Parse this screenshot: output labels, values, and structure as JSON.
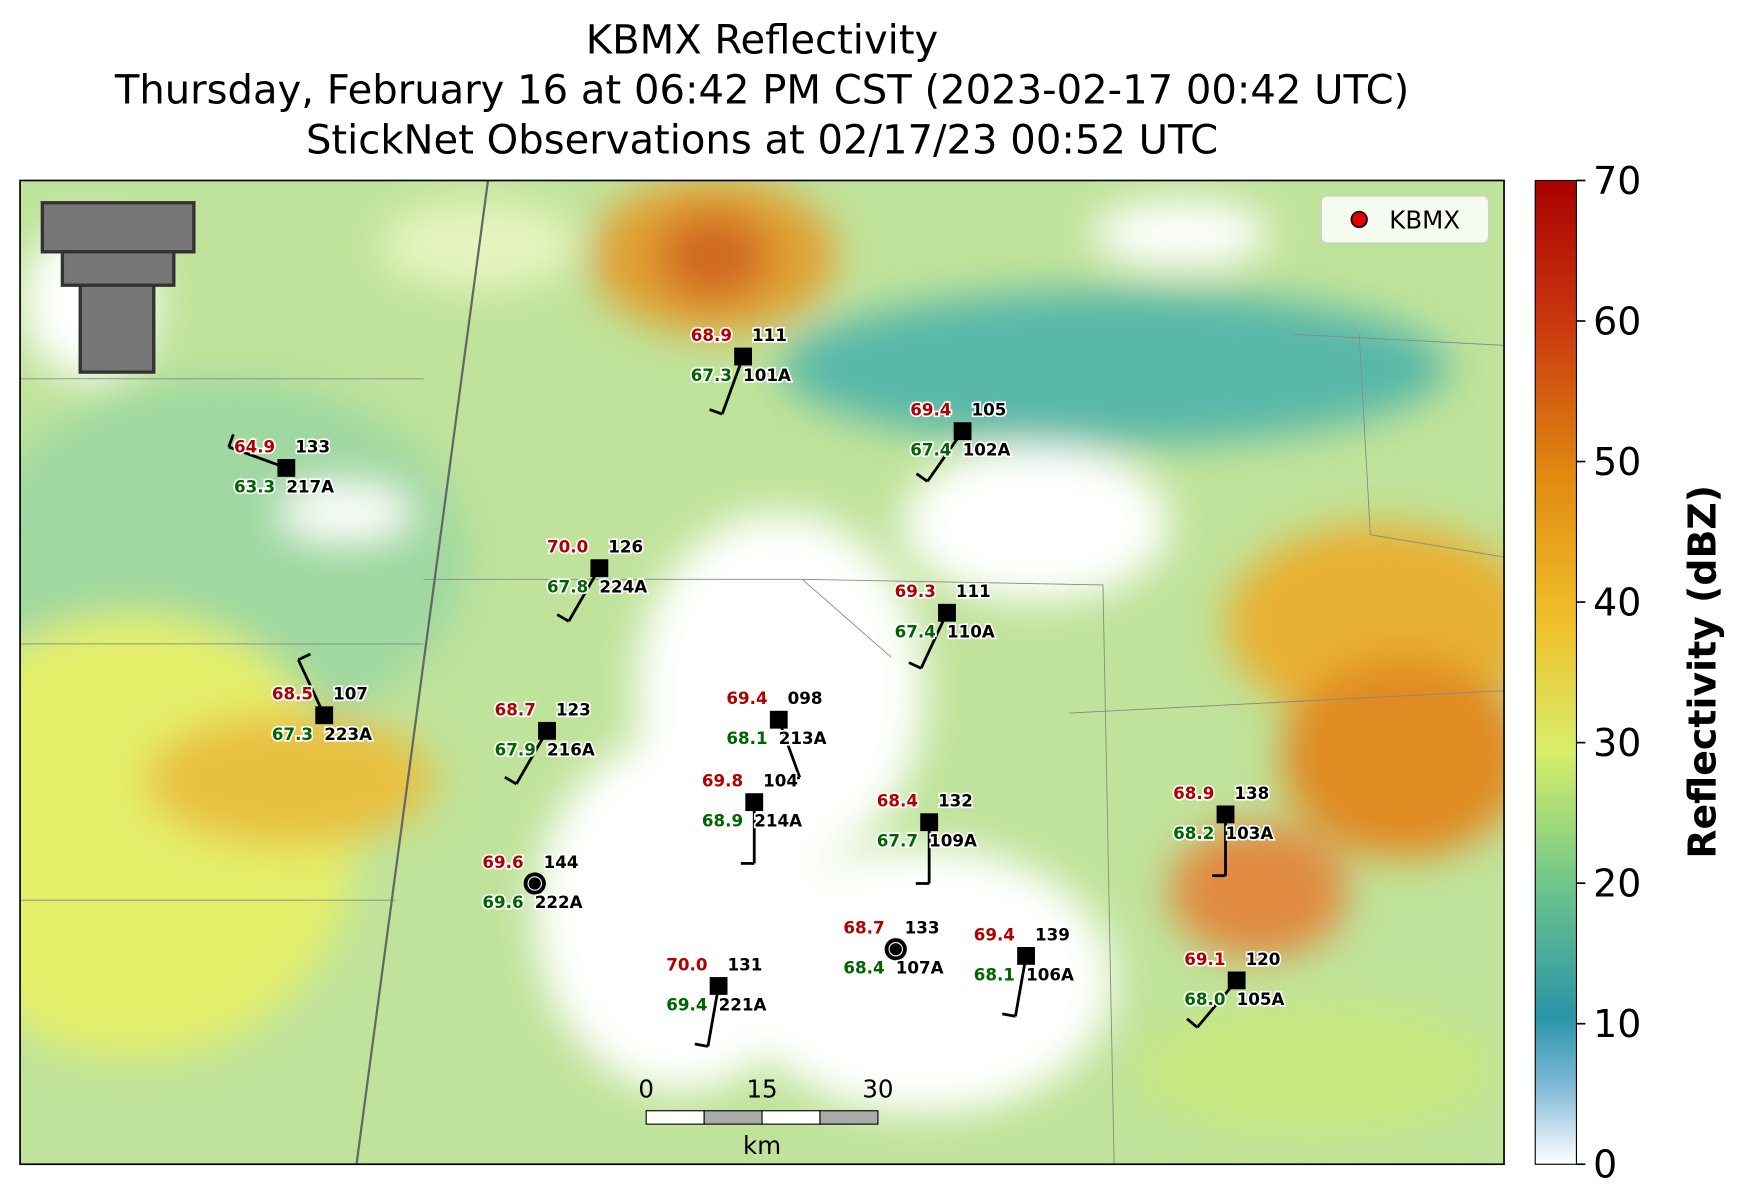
{
  "header": {
    "title": [
      "KBMX Reflectivity",
      "Thursday, February 16 at 06:42 PM CST (2023-02-17 00:42 UTC)",
      "StickNet Observations at 02/17/23 00:52 UTC"
    ]
  },
  "legend": [
    "KBMX"
  ],
  "stations": [
    {
      "temp": "68.9",
      "dew": "67.3",
      "pressure": "111",
      "id": "101A"
    },
    {
      "temp": "69.4",
      "dew": "67.4",
      "pressure": "105",
      "id": "102A"
    },
    {
      "temp": "64.9",
      "dew": "63.3",
      "pressure": "133",
      "id": "217A"
    },
    {
      "temp": "70.0",
      "dew": "67.8",
      "pressure": "126",
      "id": "224A"
    },
    {
      "temp": "69.3",
      "dew": "67.4",
      "pressure": "111",
      "id": "110A"
    },
    {
      "temp": "68.5",
      "dew": "67.3",
      "pressure": "107",
      "id": "223A"
    },
    {
      "temp": "68.7",
      "dew": "67.9",
      "pressure": "123",
      "id": "216A"
    },
    {
      "temp": "69.4",
      "dew": "68.1",
      "pressure": "098",
      "id": "213A"
    },
    {
      "temp": "69.8",
      "dew": "68.9",
      "pressure": "104",
      "id": "214A"
    },
    {
      "temp": "68.4",
      "dew": "67.7",
      "pressure": "132",
      "id": "109A"
    },
    {
      "temp": "68.9",
      "dew": "68.2",
      "pressure": "138",
      "id": "103A"
    },
    {
      "temp": "69.6",
      "dew": "69.6",
      "pressure": "144",
      "id": "222A"
    },
    {
      "temp": "68.7",
      "dew": "68.4",
      "pressure": "133",
      "id": "107A"
    },
    {
      "temp": "69.4",
      "dew": "68.1",
      "pressure": "139",
      "id": "106A"
    },
    {
      "temp": "70.0",
      "dew": "69.4",
      "pressure": "131",
      "id": "221A"
    },
    {
      "temp": "69.1",
      "dew": "68.0",
      "pressure": "120",
      "id": "105A"
    }
  ],
  "colorbar": {
    "label": "Reflectivity (dBZ)",
    "range": [
      0,
      70
    ],
    "ticks": [
      0,
      10,
      20,
      30,
      40,
      50,
      60,
      70
    ]
  },
  "scale_bar": {
    "ticks": [
      0,
      15,
      30
    ],
    "unit": "km"
  }
}
